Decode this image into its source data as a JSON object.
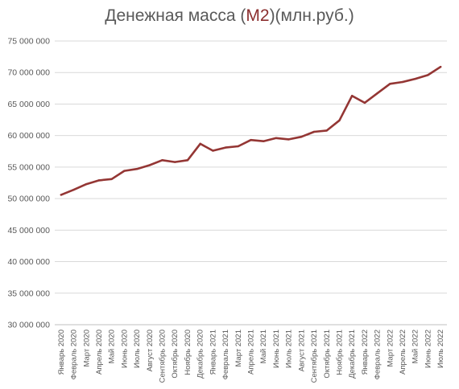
{
  "chart_data": {
    "type": "line",
    "title": {
      "prefix": "Денежная масса (",
      "highlight": "М2",
      "suffix": ")(млн.руб.)"
    },
    "xlabel": "",
    "ylabel": "",
    "ylim": [
      30000000,
      75000000
    ],
    "y_ticks": [
      30000000,
      35000000,
      40000000,
      45000000,
      50000000,
      55000000,
      60000000,
      65000000,
      70000000,
      75000000
    ],
    "y_tick_labels": [
      "30 000 000",
      "35 000 000",
      "40 000 000",
      "45 000 000",
      "50 000 000",
      "55 000 000",
      "60 000 000",
      "65 000 000",
      "70 000 000",
      "75 000 000"
    ],
    "grid": true,
    "legend": "none",
    "line_color": "#943634",
    "categories": [
      "Январь 2020",
      "Февраль 2020",
      "Март 2020",
      "Апрель 2020",
      "Май 2020",
      "Июнь 2020",
      "Июль 2020",
      "Август 2020",
      "Сентябрь 2020",
      "Октябрь 2020",
      "Ноябрь 2020",
      "Декабрь 2020",
      "Январь 2021",
      "Февраль 2021",
      "Март 2021",
      "Апрель 2021",
      "Май 2021",
      "Июнь 2021",
      "Июль 2021",
      "Август 2021",
      "Сентябрь 2021",
      "Октябрь 2021",
      "Ноябрь 2021",
      "Декабрь 2021",
      "Январь 2022",
      "Февраль 2022",
      "Март 2022",
      "Апрель 2022",
      "Май 2022",
      "Июнь 2022",
      "Июль 2022"
    ],
    "series": [
      {
        "values": [
          50600000,
          51400000,
          52300000,
          52900000,
          53100000,
          54400000,
          54700000,
          55300000,
          56100000,
          55800000,
          56100000,
          58700000,
          57600000,
          58100000,
          58300000,
          59300000,
          59100000,
          59600000,
          59400000,
          59800000,
          60600000,
          60800000,
          62400000,
          66300000,
          65200000,
          66700000,
          68200000,
          68500000,
          69000000,
          69600000,
          70900000
        ]
      }
    ]
  }
}
